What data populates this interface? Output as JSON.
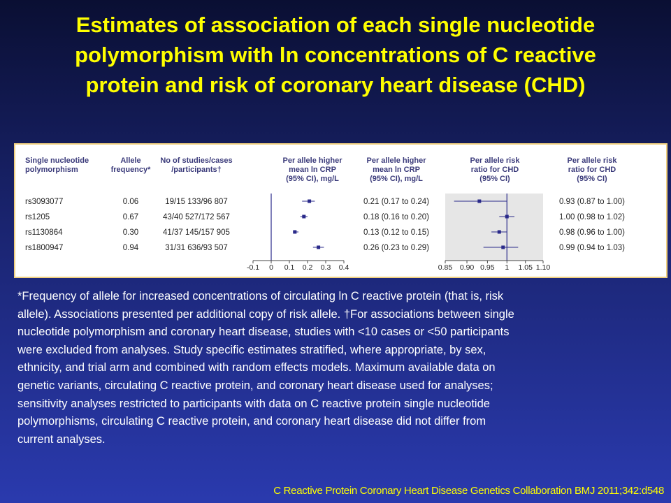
{
  "slide": {
    "title_lines": [
      "Estimates of association of each single nucleotide",
      "polymorphism with ln concentrations of C reactive",
      "protein and risk of coronary heart disease (CHD)"
    ],
    "footnote_lines": [
      "*Frequency of allele for increased concentrations of circulating ln C reactive protein (that is, risk",
      "allele). Associations presented per additional copy of risk allele. †For associations between single",
      "nucleotide polymorphism and coronary heart disease, studies with <10 cases or <50 participants",
      "were excluded from analyses. Study specific estimates stratified, where appropriate, by sex,",
      "ethnicity, and trial arm and combined with random effects models. Maximum available data on",
      "genetic variants, circulating C reactive protein, and coronary heart disease used for analyses;",
      "sensitivity analyses restricted to participants with data on C reactive protein single nucleotide",
      "polymorphisms, circulating C reactive protein, and coronary heart disease did not differ from",
      "current analyses."
    ],
    "citation": "C Reactive Protein Coronary Heart Disease Genetics Collaboration  BMJ 2011;342:d548",
    "colors": {
      "background": "#1a2470",
      "title": "#ffff00",
      "footnote": "#ffffff",
      "marker": "#2a2a8a",
      "plot_band": "#e6e6e6"
    }
  },
  "table": {
    "headers": {
      "snp": [
        "Single nucleotide",
        "polymorphism"
      ],
      "freq": [
        "Allele",
        "frequency*"
      ],
      "studies": [
        "No of studies/cases",
        "/participants†"
      ],
      "crp_plot": [
        "Per allele higher",
        "mean ln CRP",
        "(95% CI), mg/L"
      ],
      "crp_text": [
        "Per allele higher",
        "mean ln CRP",
        "(95% CI), mg/L"
      ],
      "chd_plot": [
        "Per allele risk",
        "ratio for CHD",
        "(95% CI)"
      ],
      "chd_text": [
        "Per allele risk",
        "ratio for CHD",
        "(95% CI)"
      ]
    },
    "rows": [
      {
        "snp": "rs3093077",
        "freq": "0.06",
        "studies": "19/15 133/96 807",
        "crp_text": "0.21 (0.17 to 0.24)",
        "chd_text": "0.93 (0.87 to 1.00)"
      },
      {
        "snp": "rs1205",
        "freq": "0.67",
        "studies": "43/40 527/172 567",
        "crp_text": "0.18 (0.16 to 0.20)",
        "chd_text": "1.00 (0.98 to 1.02)"
      },
      {
        "snp": "rs1130864",
        "freq": "0.30",
        "studies": "41/37 145/157 905",
        "crp_text": "0.13 (0.12 to 0.15)",
        "chd_text": "0.98 (0.96 to 1.00)"
      },
      {
        "snp": "rs1800947",
        "freq": "0.94",
        "studies": "31/31 636/93 507",
        "crp_text": "0.26 (0.23 to 0.29)",
        "chd_text": "0.99 (0.94 to 1.03)"
      }
    ]
  },
  "chart_data": [
    {
      "type": "scatter",
      "subtype": "forest",
      "categories": [
        "rs3093077",
        "rs1205",
        "rs1130864",
        "rs1800947"
      ],
      "estimate": [
        0.21,
        0.18,
        0.13,
        0.26
      ],
      "ci_low": [
        0.17,
        0.16,
        0.12,
        0.23
      ],
      "ci_high": [
        0.24,
        0.2,
        0.15,
        0.29
      ],
      "xlim": [
        -0.1,
        0.4
      ],
      "ref_line": 0,
      "xticks": [
        "-0.1",
        "0",
        "0.1",
        "0.2",
        "0.3",
        "0.4"
      ],
      "xtick_values": [
        -0.1,
        0,
        0.1,
        0.2,
        0.3,
        0.4
      ],
      "xscale": "linear"
    },
    {
      "type": "scatter",
      "subtype": "forest",
      "categories": [
        "rs3093077",
        "rs1205",
        "rs1130864",
        "rs1800947"
      ],
      "estimate": [
        0.93,
        1.0,
        0.98,
        0.99
      ],
      "ci_low": [
        0.87,
        0.98,
        0.96,
        0.94
      ],
      "ci_high": [
        1.0,
        1.02,
        1.0,
        1.03
      ],
      "xlim": [
        0.85,
        1.1
      ],
      "ref_line": 1,
      "xticks": [
        "0.85",
        "0.90",
        "0.95",
        "1",
        "1.05",
        "1.10"
      ],
      "xtick_values": [
        0.85,
        0.9,
        0.95,
        1.0,
        1.05,
        1.1
      ],
      "xscale": "log"
    }
  ]
}
